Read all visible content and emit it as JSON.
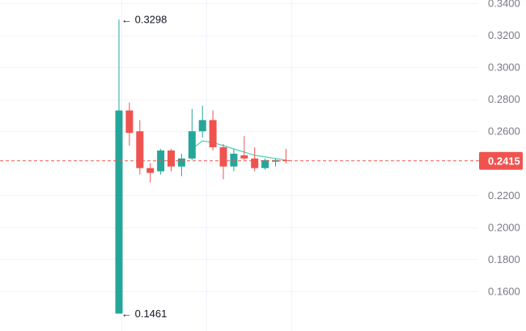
{
  "chart_data": {
    "type": "candlestick",
    "ylim": [
      0.1461,
      0.3298
    ],
    "y_ticks": [
      "0.3400",
      "0.3200",
      "0.3000",
      "0.2800",
      "0.2600",
      "0.2400",
      "0.2200",
      "0.2000",
      "0.1800",
      "0.1600"
    ],
    "y_tick_values": [
      0.34,
      0.32,
      0.3,
      0.28,
      0.26,
      0.24,
      0.22,
      0.2,
      0.18,
      0.16
    ],
    "grid": true,
    "colors": {
      "up": "#26a69a",
      "down": "#ef5350",
      "ma": "#4dd0b4",
      "grid": "#f0f3fa",
      "axis_text": "#787b86"
    },
    "candles": [
      {
        "open": 0.1461,
        "high": 0.3298,
        "low": 0.1461,
        "close": 0.273
      },
      {
        "open": 0.273,
        "high": 0.278,
        "low": 0.251,
        "close": 0.259
      },
      {
        "open": 0.26,
        "high": 0.267,
        "low": 0.233,
        "close": 0.237
      },
      {
        "open": 0.237,
        "high": 0.24,
        "low": 0.228,
        "close": 0.234
      },
      {
        "open": 0.235,
        "high": 0.249,
        "low": 0.233,
        "close": 0.248
      },
      {
        "open": 0.248,
        "high": 0.249,
        "low": 0.235,
        "close": 0.238
      },
      {
        "open": 0.238,
        "high": 0.246,
        "low": 0.232,
        "close": 0.243
      },
      {
        "open": 0.243,
        "high": 0.274,
        "low": 0.242,
        "close": 0.26
      },
      {
        "open": 0.26,
        "high": 0.276,
        "low": 0.256,
        "close": 0.267
      },
      {
        "open": 0.267,
        "high": 0.273,
        "low": 0.248,
        "close": 0.25
      },
      {
        "open": 0.25,
        "high": 0.252,
        "low": 0.23,
        "close": 0.238
      },
      {
        "open": 0.238,
        "high": 0.249,
        "low": 0.235,
        "close": 0.246
      },
      {
        "open": 0.245,
        "high": 0.257,
        "low": 0.242,
        "close": 0.243
      },
      {
        "open": 0.243,
        "high": 0.25,
        "low": 0.235,
        "close": 0.237
      },
      {
        "open": 0.237,
        "high": 0.243,
        "low": 0.236,
        "close": 0.242
      },
      {
        "open": 0.241,
        "high": 0.243,
        "low": 0.238,
        "close": 0.242
      },
      {
        "open": 0.242,
        "high": 0.249,
        "low": 0.24,
        "close": 0.2415
      }
    ],
    "ma_line": [
      null,
      null,
      null,
      null,
      null,
      null,
      null,
      0.249,
      0.254,
      0.253,
      0.251,
      0.249,
      0.247,
      0.245,
      0.244,
      0.243,
      0.242
    ],
    "current_price": 0.2415,
    "current_price_label": "0.2415",
    "high_annotation": "← 0.3298",
    "low_annotation": "← 0.1461"
  }
}
